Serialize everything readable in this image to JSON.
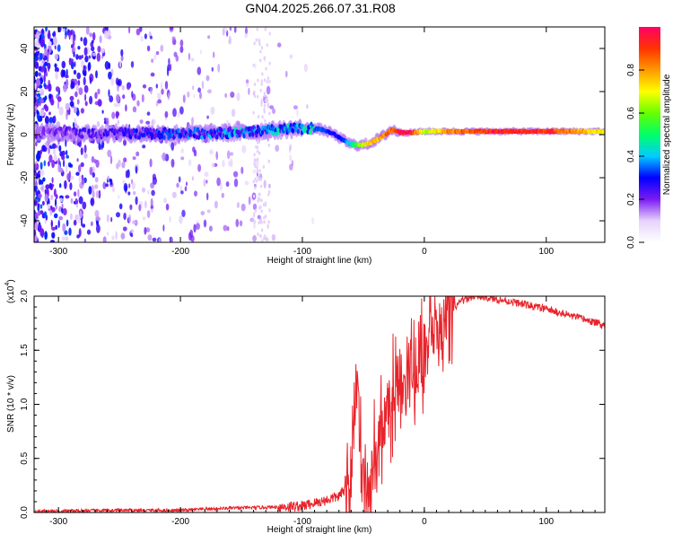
{
  "title": "GN04.2025.266.07.31.R08",
  "chart_data": [
    {
      "type": "heatmap",
      "title": "GN04.2025.266.07.31.R08",
      "xlabel": "Height of straight line (km)",
      "ylabel": "Frequency (Hz)",
      "xlim": [
        -320,
        148
      ],
      "ylim": [
        -50,
        50
      ],
      "xticks": [
        -300,
        -200,
        -100,
        0,
        100
      ],
      "yticks": [
        -40,
        -20,
        0,
        20,
        40
      ],
      "colorbar": {
        "label": "Normalized spectral amplitude",
        "range": [
          0.0,
          1.0
        ],
        "ticks": [
          "0.0",
          "0.2",
          "0.4",
          "0.6",
          "0.8"
        ]
      },
      "ridge": {
        "x": [
          -320,
          -260,
          -200,
          -150,
          -110,
          -95,
          -85,
          -75,
          -68,
          -60,
          -52,
          -45,
          -38,
          -32,
          -28,
          -24,
          -20,
          -10,
          0,
          20,
          60,
          100,
          148
        ],
        "y": [
          1,
          0.5,
          0.5,
          1,
          2.5,
          3,
          2.5,
          0.5,
          -2,
          -4.5,
          -5,
          -4,
          -2,
          0,
          2,
          2,
          1,
          1,
          1.5,
          1.5,
          1.5,
          1.5,
          1.5
        ],
        "amplitude": [
          0.15,
          0.2,
          0.25,
          0.3,
          0.32,
          0.35,
          0.35,
          0.3,
          0.3,
          0.45,
          0.65,
          0.75,
          0.8,
          0.85,
          0.9,
          0.9,
          1.0,
          0.95,
          0.65,
          0.85,
          0.95,
          0.95,
          0.7
        ]
      }
    },
    {
      "type": "line",
      "xlabel": "Height of straight line (km)",
      "ylabel": "SNR (10 * v/v)",
      "y_multiplier": "(x10",
      "y_multiplier_exp": "4",
      "y_multiplier_close": ")",
      "xlim": [
        -320,
        148
      ],
      "ylim": [
        0,
        2.0
      ],
      "xticks": [
        -300,
        -200,
        -100,
        0,
        100
      ],
      "yticks": [
        "0.0",
        "0.5",
        "1.0",
        "1.5",
        "2.0"
      ],
      "color": "#e8232a",
      "series": [
        {
          "name": "SNR",
          "x": [
            -320,
            -250,
            -200,
            -160,
            -120,
            -100,
            -85,
            -70,
            -62,
            -60,
            -58,
            -55,
            -52,
            -50,
            -47,
            -45,
            -42,
            -38,
            -34,
            -30,
            -26,
            -22,
            -18,
            -14,
            -10,
            -6,
            -2,
            0,
            5,
            10,
            15,
            20,
            25,
            30,
            40,
            50,
            60,
            80,
            100,
            120,
            148
          ],
          "y": [
            0.01,
            0.02,
            0.02,
            0.04,
            0.05,
            0.06,
            0.1,
            0.15,
            0.25,
            0.5,
            0.8,
            1.05,
            0.5,
            0.25,
            0.1,
            0.15,
            0.35,
            0.6,
            0.8,
            0.9,
            1.0,
            1.1,
            1.1,
            1.2,
            1.25,
            1.35,
            1.45,
            1.45,
            1.55,
            1.65,
            1.75,
            1.85,
            1.9,
            1.95,
            2.0,
            1.99,
            1.97,
            1.93,
            1.88,
            1.82,
            1.73
          ]
        }
      ]
    }
  ]
}
